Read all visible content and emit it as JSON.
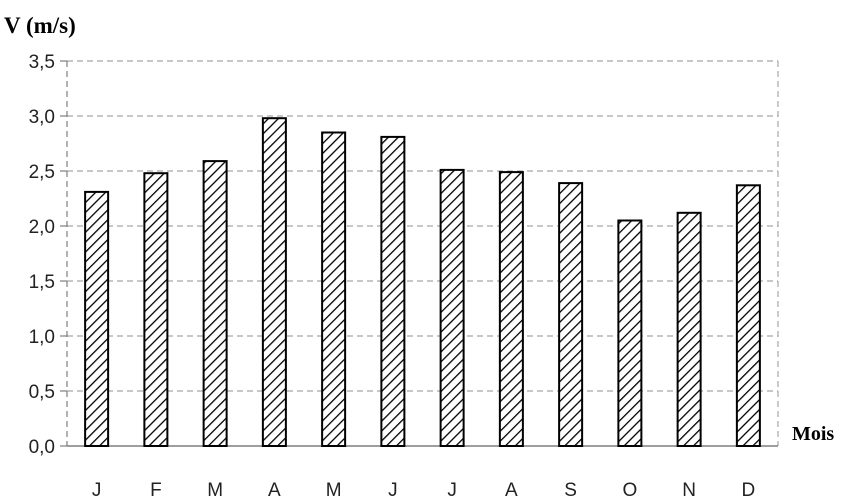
{
  "chart_data": {
    "type": "bar",
    "title": "",
    "ylabel": "V (m/s)",
    "xlabel": "Mois",
    "categories": [
      "J",
      "F",
      "M",
      "A",
      "M",
      "J",
      "J",
      "A",
      "S",
      "O",
      "N",
      "D"
    ],
    "values": [
      2.31,
      2.48,
      2.59,
      2.98,
      2.85,
      2.81,
      2.51,
      2.49,
      2.39,
      2.05,
      2.12,
      2.37
    ],
    "ylim": [
      0,
      3.5
    ],
    "yticks": [
      "0,0",
      "0,5",
      "1,0",
      "1,5",
      "2,0",
      "2,5",
      "3,0",
      "3,5"
    ],
    "grid": true,
    "grid_style": "dashed",
    "bar_pattern": "diagonal-hatch",
    "colors": {
      "bar_fill": "#ffffff",
      "bar_hatch": "#000000",
      "bar_stroke": "#000000",
      "grid": "#a6a6a6",
      "axis": "#7f7f7f"
    }
  }
}
